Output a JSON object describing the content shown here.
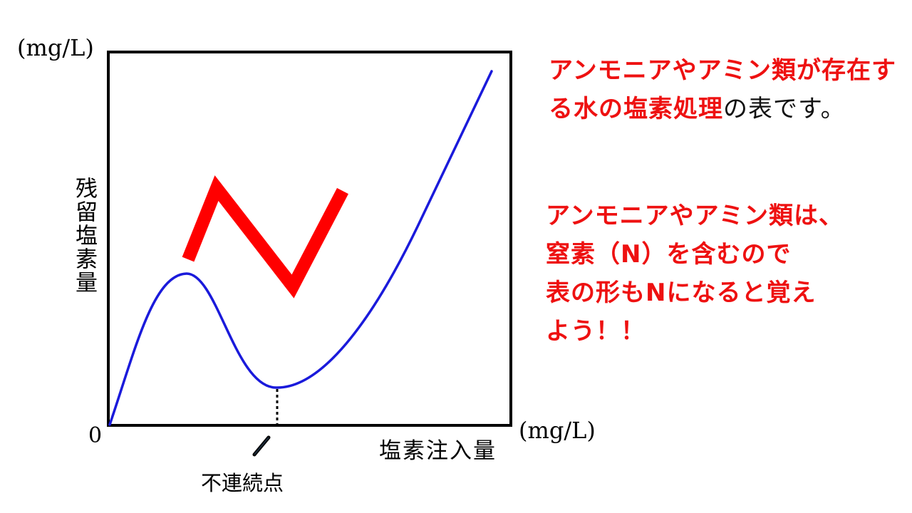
{
  "graph": {
    "y_unit": "(mg/L)",
    "x_unit": "(mg/L)",
    "origin": "0",
    "y_label": "残留塩素量",
    "x_label": "塩素注入量",
    "discontinuity_label": "不連続点",
    "curve_color": "#1a1adb",
    "n_mark_color": "#ff0000"
  },
  "notes": {
    "note1_red": "アンモニアやアミン類が存在する水の塩素処理",
    "note1_black": "の表です。",
    "note2_line1": "アンモニアやアミン類は、",
    "note2_line2": "窒素（N）を含むので",
    "note2_line3": "表の形もNになると覚え",
    "note2_line4": "よう！！",
    "text_color_red": "#ee1111"
  }
}
